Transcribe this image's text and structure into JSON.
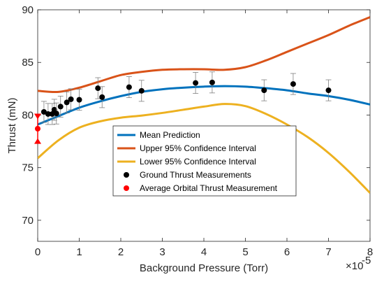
{
  "chart_data": {
    "type": "line",
    "title": "",
    "xlabel": "Background Pressure (Torr)",
    "ylabel": "Thrust (mN)",
    "x_exponent_label": "×10",
    "x_exponent_power": "-5",
    "xlim": [
      0,
      8
    ],
    "ylim": [
      68,
      90
    ],
    "x_ticks": [
      0,
      1,
      2,
      3,
      4,
      5,
      6,
      7,
      8
    ],
    "y_ticks": [
      70,
      75,
      80,
      85,
      90
    ],
    "x_tick_labels": [
      "0",
      "1",
      "2",
      "3",
      "4",
      "5",
      "6",
      "7",
      "8"
    ],
    "y_tick_labels": [
      "70",
      "75",
      "80",
      "85",
      "90"
    ],
    "grid": false,
    "legend_position": "center",
    "series": [
      {
        "name": "Mean Prediction",
        "kind": "line",
        "color": "#0072BD",
        "x": [
          0,
          0.5,
          1,
          1.5,
          2,
          2.5,
          3,
          3.5,
          4,
          4.5,
          5,
          5.5,
          6,
          6.5,
          7,
          7.5,
          8
        ],
        "y": [
          79.1,
          79.9,
          80.7,
          81.3,
          81.8,
          82.2,
          82.45,
          82.6,
          82.7,
          82.75,
          82.7,
          82.55,
          82.35,
          82.05,
          81.8,
          81.45,
          81.0
        ]
      },
      {
        "name": "Upper 95% Confidence Interval",
        "kind": "line",
        "color": "#D95319",
        "x": [
          0,
          0.5,
          1,
          1.5,
          2,
          2.5,
          3,
          3.5,
          4,
          4.5,
          5,
          5.5,
          6,
          6.5,
          7,
          7.5,
          8
        ],
        "y": [
          82.3,
          82.2,
          82.6,
          83.2,
          83.8,
          84.1,
          84.3,
          84.35,
          84.35,
          84.3,
          84.55,
          85.2,
          86.0,
          86.8,
          87.6,
          88.5,
          89.3
        ]
      },
      {
        "name": "Lower 95% Confidence Interval",
        "kind": "line",
        "color": "#EDB120",
        "x": [
          0,
          0.5,
          1,
          1.5,
          2,
          2.5,
          3,
          3.5,
          4,
          4.5,
          5,
          5.5,
          6,
          6.5,
          7,
          7.5,
          8
        ],
        "y": [
          75.9,
          77.6,
          78.8,
          79.4,
          79.75,
          79.95,
          80.2,
          80.5,
          80.8,
          81.05,
          80.85,
          80.1,
          79.1,
          77.9,
          76.4,
          74.6,
          72.6
        ]
      },
      {
        "name": "Ground Thrust Measurements",
        "kind": "scatter",
        "color": "#000000",
        "x": [
          0.15,
          0.25,
          0.35,
          0.4,
          0.45,
          0.55,
          0.7,
          0.8,
          1.0,
          1.45,
          1.55,
          2.2,
          2.5,
          3.8,
          4.2,
          5.45,
          6.15,
          7.0
        ],
        "y": [
          80.3,
          80.1,
          80.1,
          80.5,
          80.15,
          80.8,
          81.2,
          81.5,
          81.45,
          82.55,
          81.7,
          82.65,
          82.3,
          83.05,
          83.1,
          82.35,
          82.95,
          82.35
        ],
        "error": [
          1.0,
          1.0,
          1.0,
          1.0,
          1.0,
          1.0,
          1.0,
          1.0,
          1.0,
          1.0,
          1.0,
          1.0,
          1.0,
          1.0,
          1.0,
          1.0,
          1.0,
          1.0
        ]
      },
      {
        "name": "Average Orbital Thrust Measurement",
        "kind": "scatter",
        "color": "#FF0000",
        "x": [
          0
        ],
        "y": [
          78.7
        ],
        "error_low": 1.3,
        "error_high": 1.3
      }
    ]
  }
}
